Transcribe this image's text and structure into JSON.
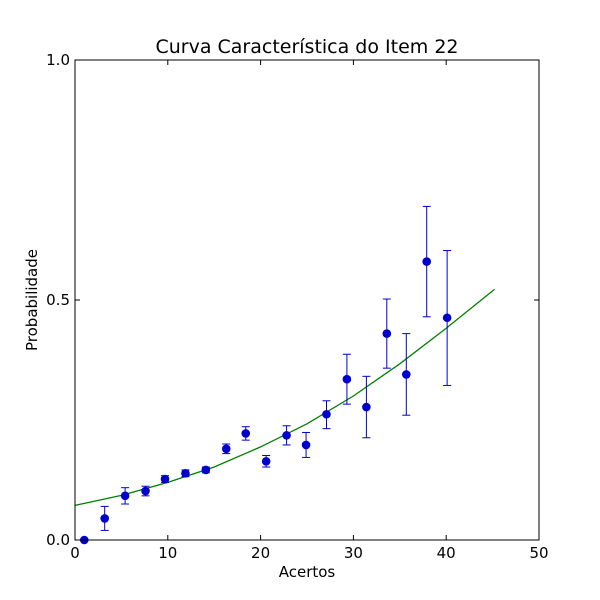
{
  "chart_data": {
    "type": "scatter",
    "title": "Curva Característica do Item 22",
    "xlabel": "Acertos",
    "ylabel": "Probabilidade",
    "xlim": [
      0,
      50
    ],
    "ylim": [
      0,
      1
    ],
    "xticks": [
      0,
      10,
      20,
      30,
      40,
      50
    ],
    "xtick_labels": [
      "0",
      "10",
      "20",
      "30",
      "40",
      "50"
    ],
    "yticks": [
      0,
      0.5,
      1
    ],
    "ytick_labels": [
      "0.0",
      "0.5",
      "1.0"
    ],
    "grid": false,
    "points": {
      "color": "#0000cc",
      "x": [
        1.0,
        3.2,
        5.4,
        7.6,
        9.7,
        11.9,
        14.1,
        16.3,
        18.4,
        20.6,
        22.8,
        24.9,
        27.1,
        29.3,
        31.4,
        33.6,
        35.7,
        37.9,
        40.1
      ],
      "y": [
        0.0,
        0.045,
        0.092,
        0.102,
        0.127,
        0.139,
        0.146,
        0.19,
        0.222,
        0.164,
        0.218,
        0.198,
        0.262,
        0.335,
        0.277,
        0.43,
        0.345,
        0.58,
        0.463
      ],
      "err_low": [
        0.0,
        0.02,
        0.075,
        0.092,
        0.12,
        0.132,
        0.14,
        0.18,
        0.208,
        0.152,
        0.198,
        0.172,
        0.232,
        0.283,
        0.213,
        0.358,
        0.26,
        0.465,
        0.322
      ],
      "err_high": [
        0.0,
        0.07,
        0.109,
        0.112,
        0.134,
        0.146,
        0.152,
        0.2,
        0.236,
        0.176,
        0.238,
        0.224,
        0.29,
        0.387,
        0.341,
        0.502,
        0.43,
        0.695,
        0.603
      ]
    },
    "fit_curve": {
      "color": "#008000",
      "x": [
        0,
        5,
        10,
        15,
        20,
        25,
        30,
        35,
        40,
        45.2
      ],
      "y": [
        0.072,
        0.093,
        0.12,
        0.152,
        0.194,
        0.242,
        0.3,
        0.367,
        0.441,
        0.522
      ]
    }
  }
}
